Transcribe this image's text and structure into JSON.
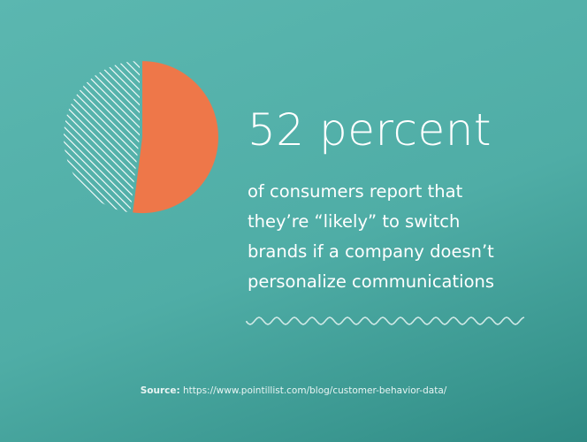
{
  "headline": "52 percent",
  "body_lines": [
    "of consumers report that",
    "they’re “likely” to switch",
    "brands if a company doesn’t",
    "personalize communications"
  ],
  "source": {
    "label": "Source:",
    "url": "https://www.pointillist.com/blog/customer-behavior-data/"
  },
  "colors": {
    "background": "#4fada6",
    "highlight_slice": "#ee7749",
    "remainder_slice": "#ffffff",
    "text": "#ffffff"
  },
  "chart_data": {
    "type": "pie",
    "values": [
      52,
      48
    ],
    "slice_styles": [
      "solid-orange",
      "hatched-white"
    ],
    "title": "",
    "legend": "none"
  }
}
